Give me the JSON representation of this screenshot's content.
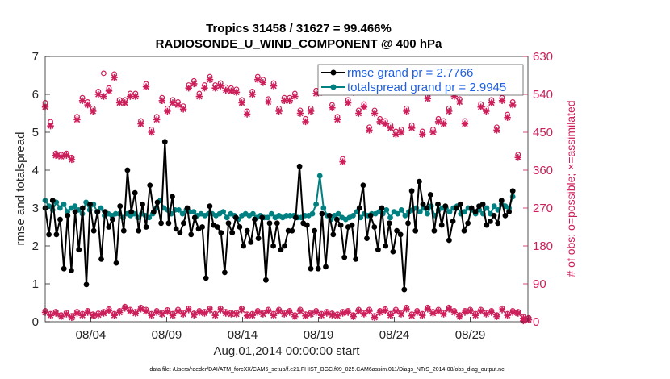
{
  "chart_data": {
    "type": "line",
    "title_line1": "Tropics 31458 / 31627 = 99.466%",
    "title_line2": "RADIOSONDE_U_WIND_COMPONENT @ 400 hPa",
    "xlabel": "Aug.01,2014 00:00:00 start",
    "ylabel": "rmse and totalspread",
    "y2label": "# of obs: o=possible; ×=assimilated",
    "footnote": "data file: /Users/raeder/DAI/ATM_forcXX/CAM6_setup/f.e21.FHIST_BGC.f09_025.CAM6assim.011/Diags_NTrS_2014-08/obs_diag_output.nc",
    "xlim": [
      1,
      32.8
    ],
    "ylim": [
      0,
      7
    ],
    "y2lim": [
      0,
      630
    ],
    "x_ticks": [
      {
        "pos": 4,
        "label": "08/04"
      },
      {
        "pos": 9,
        "label": "08/09"
      },
      {
        "pos": 14,
        "label": "08/14"
      },
      {
        "pos": 19,
        "label": "08/19"
      },
      {
        "pos": 24,
        "label": "08/24"
      },
      {
        "pos": 29,
        "label": "08/29"
      }
    ],
    "y_ticks": [
      "0",
      "1",
      "2",
      "3",
      "4",
      "5",
      "6",
      "7"
    ],
    "y2_ticks": [
      "0",
      "90",
      "180",
      "270",
      "360",
      "450",
      "540",
      "630"
    ],
    "legend": [
      {
        "label": "rmse grand pr = 2.7766",
        "color": "#000000"
      },
      {
        "label": "totalspread grand pr = 2.9945",
        "color": "#008080"
      }
    ],
    "colors": {
      "rmse": "#000000",
      "spread": "#008080",
      "obs": "#cc1e5a",
      "axis": "#262626"
    },
    "series": [
      {
        "name": "rmse",
        "values": [
          3.0,
          2.3,
          3.2,
          2.3,
          2.7,
          1.4,
          2.8,
          1.35,
          2.9,
          1.9,
          3.0,
          0.98,
          3.1,
          2.4,
          2.9,
          1.65,
          2.9,
          2.5,
          2.7,
          1.55,
          3.05,
          2.4,
          4.0,
          2.9,
          3.4,
          2.4,
          3.1,
          2.5,
          3.6,
          2.9,
          3.15,
          2.6,
          4.75,
          2.6,
          3.3,
          2.45,
          2.35,
          2.6,
          3.0,
          2.3,
          2.75,
          2.45,
          2.5,
          1.15,
          3.05,
          2.55,
          2.5,
          2.35,
          1.3,
          2.6,
          2.35,
          2.75,
          2.5,
          2.0,
          2.4,
          2.1,
          2.7,
          2.2,
          2.75,
          1.1,
          2.6,
          2.0,
          2.6,
          1.9,
          2.0,
          2.4,
          2.4,
          2.75,
          4.1,
          2.6,
          2.55,
          1.4,
          2.4,
          1.4,
          2.85,
          1.45,
          2.8,
          2.3,
          2.7,
          2.55,
          1.7,
          2.5,
          2.55,
          1.65,
          3.0,
          3.6,
          2.2,
          2.8,
          2.5,
          1.9,
          3.0,
          2.0,
          2.6,
          1.85,
          2.4,
          2.3,
          0.85,
          2.6,
          3.45,
          2.4,
          3.7,
          3.1,
          3.0,
          3.35,
          2.4,
          3.1,
          2.55,
          3.05,
          2.15,
          2.65,
          3.0,
          3.1,
          2.4,
          2.6,
          3.0,
          2.9,
          3.05,
          3.1,
          2.55,
          2.65,
          2.8,
          2.6,
          3.2,
          2.8,
          2.9,
          3.45
        ]
      },
      {
        "name": "totalspread",
        "values": [
          3.2,
          3.05,
          2.95,
          3.15,
          3.0,
          3.1,
          2.9,
          3.0,
          3.05,
          2.95,
          2.85,
          3.15,
          2.95,
          3.1,
          2.9,
          3.0,
          2.8,
          2.85,
          2.8,
          2.85,
          2.85,
          2.75,
          2.85,
          2.8,
          2.85,
          2.75,
          2.85,
          2.8,
          2.75,
          2.85,
          3.0,
          3.2,
          3.0,
          2.95,
          2.85,
          2.95,
          2.95,
          2.85,
          2.95,
          2.9,
          2.9,
          2.8,
          2.85,
          2.8,
          2.85,
          2.85,
          2.8,
          2.85,
          2.9,
          2.75,
          2.85,
          2.8,
          2.7,
          2.8,
          2.85,
          2.8,
          2.85,
          2.75,
          2.8,
          2.75,
          2.75,
          2.85,
          2.75,
          2.8,
          2.75,
          2.8,
          2.8,
          2.8,
          2.75,
          2.75,
          2.8,
          2.8,
          2.85,
          3.1,
          3.85,
          3.0,
          2.8,
          2.7,
          2.8,
          2.85,
          2.75,
          2.7,
          2.75,
          2.8,
          2.9,
          2.75,
          2.85,
          2.8,
          2.85,
          2.85,
          2.9,
          2.85,
          2.95,
          2.75,
          2.9,
          2.85,
          2.95,
          2.8,
          2.9,
          2.95,
          3.0,
          2.9,
          3.0,
          2.85,
          3.05,
          2.8,
          2.95,
          3.0,
          3.0,
          2.9,
          3.0,
          3.05,
          2.85,
          2.9,
          3.0,
          2.95,
          2.85,
          2.95,
          2.85,
          3.0,
          2.85,
          3.05,
          2.95,
          3.1,
          3.05,
          3.0,
          3.3
        ]
      },
      {
        "name": "obs_assimilated_upper",
        "values": [
          510,
          465,
          395,
          392,
          395,
          385,
          480,
          525,
          515,
          500,
          540,
          535,
          548,
          580,
          520,
          520,
          535,
          535,
          470,
          558,
          450,
          480,
          525,
          500,
          520,
          515,
          505,
          555,
          565,
          535,
          555,
          575,
          555,
          560,
          550,
          548,
          545,
          520,
          493,
          540,
          575,
          568,
          522,
          560,
          500,
          525,
          525,
          535,
          495,
          475,
          500,
          542,
          545,
          560,
          508,
          480,
          380,
          520,
          545,
          495,
          510,
          455,
          495,
          475,
          470,
          460,
          445,
          450,
          500,
          460,
          585,
          445,
          530,
          450,
          475,
          470,
          500,
          535,
          522,
          470,
          555,
          565,
          510,
          500,
          520,
          455,
          525,
          485,
          515,
          390,
          2,
          5
        ]
      },
      {
        "name": "obs_possible_upper",
        "values": [
          520,
          475,
          400,
          397,
          400,
          390,
          487,
          532,
          522,
          507,
          547,
          590,
          555,
          588,
          527,
          527,
          542,
          542,
          477,
          565,
          457,
          487,
          532,
          507,
          527,
          522,
          512,
          562,
          572,
          542,
          562,
          582,
          562,
          567,
          557,
          555,
          552,
          527,
          500,
          547,
          582,
          575,
          529,
          567,
          507,
          532,
          532,
          542,
          502,
          482,
          507,
          549,
          552,
          567,
          515,
          487,
          387,
          527,
          552,
          502,
          517,
          462,
          502,
          482,
          477,
          467,
          452,
          457,
          507,
          467,
          592,
          452,
          537,
          457,
          482,
          477,
          507,
          542,
          529,
          477,
          562,
          572,
          517,
          507,
          527,
          462,
          532,
          492,
          522,
          397,
          6,
          9
        ]
      },
      {
        "name": "obs_assimilated_lower",
        "values": [
          22,
          15,
          20,
          12,
          18,
          10,
          20,
          15,
          22,
          14,
          16,
          20,
          26,
          15,
          22,
          32,
          25,
          20,
          30,
          25,
          15,
          22,
          18,
          24,
          15,
          25,
          18,
          28,
          16,
          22,
          20,
          28,
          15,
          28,
          20,
          18,
          18,
          28,
          14,
          15,
          22,
          18,
          25,
          15,
          25,
          18,
          22,
          12,
          25,
          14,
          18,
          22,
          15,
          20,
          16,
          14,
          20,
          22,
          12,
          25,
          18,
          25,
          10,
          22,
          26,
          15,
          25,
          18,
          30,
          14,
          22,
          15,
          30,
          20,
          25,
          18,
          30,
          22,
          12,
          22,
          25,
          15,
          25,
          18,
          22,
          12,
          28,
          15,
          22,
          20,
          8,
          5
        ]
      },
      {
        "name": "obs_possible_lower",
        "values": [
          26,
          19,
          24,
          16,
          22,
          14,
          24,
          19,
          26,
          18,
          20,
          24,
          30,
          19,
          26,
          36,
          29,
          24,
          34,
          29,
          19,
          26,
          22,
          28,
          19,
          29,
          22,
          32,
          20,
          26,
          24,
          32,
          19,
          32,
          24,
          22,
          22,
          32,
          18,
          19,
          26,
          22,
          29,
          19,
          29,
          22,
          26,
          16,
          29,
          18,
          22,
          26,
          19,
          24,
          20,
          18,
          24,
          26,
          16,
          29,
          22,
          29,
          14,
          26,
          30,
          19,
          29,
          22,
          34,
          18,
          26,
          19,
          34,
          24,
          29,
          22,
          34,
          26,
          16,
          26,
          29,
          19,
          29,
          22,
          26,
          16,
          32,
          19,
          26,
          24,
          12,
          9
        ]
      }
    ]
  }
}
